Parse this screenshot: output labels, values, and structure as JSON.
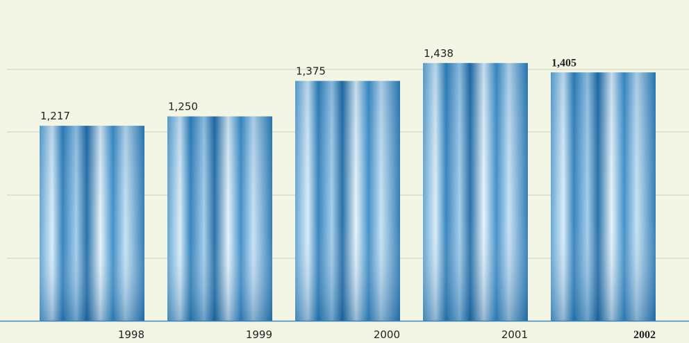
{
  "chart_data": {
    "type": "bar",
    "categories": [
      "1998",
      "1999",
      "2000",
      "2001",
      "2002"
    ],
    "values": [
      1217,
      1250,
      1375,
      1438,
      1405
    ],
    "value_labels": [
      "1,217",
      "1,250",
      "1,375",
      "1,438",
      "1,405"
    ],
    "color": "#3a8cc4",
    "ylim": [
      530,
      1660
    ]
  }
}
